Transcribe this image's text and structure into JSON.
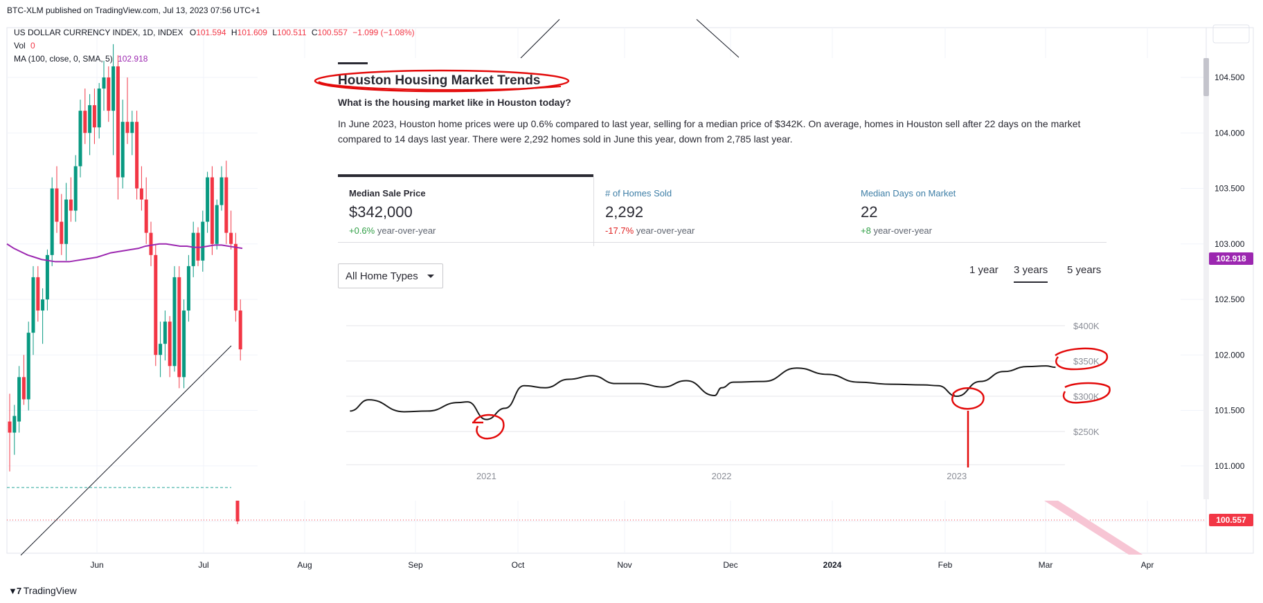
{
  "header": {
    "published_line": "BTC-XLM published on TradingView.com, Jul 13, 2023 07:56 UTC+1"
  },
  "legend": {
    "symbol": "US DOLLAR CURRENCY INDEX, 1D, INDEX",
    "o_label": "O",
    "o_value": "101.594",
    "h_label": "H",
    "h_value": "101.609",
    "l_label": "L",
    "l_value": "100.511",
    "c_label": "C",
    "c_value": "100.557",
    "change": "−1.099 (−1.08%)",
    "vol_label": "Vol",
    "vol_value": "0",
    "ma_label": "MA (100, close, 0, SMA, 5)",
    "ma_value": "102.918"
  },
  "footer": {
    "logo_text": "TradingView"
  },
  "colors": {
    "up": "#089981",
    "down": "#f23645",
    "ma": "#9c27b0",
    "grid": "#f0f3fa"
  },
  "chart_data": [
    {
      "type": "candlestick",
      "title": "US DOLLAR CURRENCY INDEX, 1D, INDEX",
      "y_axis_ticks": [
        "104.500",
        "104.000",
        "103.500",
        "103.000",
        "102.500",
        "102.000",
        "101.500",
        "101.000",
        "100.500"
      ],
      "ylim": [
        100.45,
        104.8
      ],
      "x_axis_ticks": [
        "Jun",
        "Jul",
        "Aug",
        "Sep",
        "Oct",
        "Nov",
        "Dec",
        "2024",
        "Feb",
        "Mar",
        "Apr"
      ],
      "price_labels": {
        "ma": "102.918",
        "last": "100.557"
      },
      "candles": [
        {
          "o": 101.4,
          "h": 101.65,
          "l": 100.95,
          "c": 101.3
        },
        {
          "o": 101.3,
          "h": 101.55,
          "l": 101.1,
          "c": 101.45
        },
        {
          "o": 101.4,
          "h": 101.9,
          "l": 101.3,
          "c": 101.8
        },
        {
          "o": 101.8,
          "h": 102.0,
          "l": 101.55,
          "c": 101.6
        },
        {
          "o": 101.6,
          "h": 102.3,
          "l": 101.5,
          "c": 102.2
        },
        {
          "o": 102.2,
          "h": 102.8,
          "l": 102.0,
          "c": 102.7
        },
        {
          "o": 102.7,
          "h": 102.8,
          "l": 102.3,
          "c": 102.4
        },
        {
          "o": 102.4,
          "h": 102.6,
          "l": 102.1,
          "c": 102.5
        },
        {
          "o": 102.5,
          "h": 102.95,
          "l": 102.4,
          "c": 102.9
        },
        {
          "o": 102.9,
          "h": 103.6,
          "l": 102.8,
          "c": 103.5
        },
        {
          "o": 103.5,
          "h": 103.7,
          "l": 103.1,
          "c": 103.2
        },
        {
          "o": 103.2,
          "h": 103.45,
          "l": 102.9,
          "c": 103.0
        },
        {
          "o": 103.0,
          "h": 103.55,
          "l": 102.85,
          "c": 103.4
        },
        {
          "o": 103.4,
          "h": 103.6,
          "l": 103.2,
          "c": 103.3
        },
        {
          "o": 103.3,
          "h": 103.8,
          "l": 103.2,
          "c": 103.7
        },
        {
          "o": 103.7,
          "h": 104.3,
          "l": 103.6,
          "c": 104.2
        },
        {
          "o": 104.2,
          "h": 104.4,
          "l": 103.9,
          "c": 104.0
        },
        {
          "o": 104.0,
          "h": 104.35,
          "l": 103.8,
          "c": 104.25
        },
        {
          "o": 104.25,
          "h": 104.4,
          "l": 103.9,
          "c": 104.05
        },
        {
          "o": 104.05,
          "h": 104.45,
          "l": 103.95,
          "c": 104.4
        },
        {
          "o": 104.4,
          "h": 104.65,
          "l": 104.2,
          "c": 104.5
        },
        {
          "o": 104.5,
          "h": 104.6,
          "l": 104.1,
          "c": 104.2
        },
        {
          "o": 104.2,
          "h": 104.8,
          "l": 103.8,
          "c": 104.6
        },
        {
          "o": 104.6,
          "h": 104.7,
          "l": 103.4,
          "c": 103.6
        },
        {
          "o": 103.6,
          "h": 104.3,
          "l": 103.5,
          "c": 104.1
        },
        {
          "o": 104.1,
          "h": 104.5,
          "l": 103.9,
          "c": 104.0
        },
        {
          "o": 104.0,
          "h": 104.2,
          "l": 103.8,
          "c": 104.1
        },
        {
          "o": 104.1,
          "h": 104.2,
          "l": 103.4,
          "c": 103.5
        },
        {
          "o": 103.5,
          "h": 103.7,
          "l": 103.3,
          "c": 103.4
        },
        {
          "o": 103.4,
          "h": 103.6,
          "l": 103.0,
          "c": 103.1
        },
        {
          "o": 103.1,
          "h": 103.2,
          "l": 102.8,
          "c": 102.9
        },
        {
          "o": 102.9,
          "h": 103.0,
          "l": 101.9,
          "c": 102.0
        },
        {
          "o": 102.0,
          "h": 102.3,
          "l": 101.8,
          "c": 102.1
        },
        {
          "o": 102.1,
          "h": 102.4,
          "l": 101.95,
          "c": 102.3
        },
        {
          "o": 102.3,
          "h": 102.35,
          "l": 101.8,
          "c": 101.9
        },
        {
          "o": 101.9,
          "h": 102.8,
          "l": 101.85,
          "c": 102.7
        },
        {
          "o": 102.7,
          "h": 102.8,
          "l": 101.7,
          "c": 101.8
        },
        {
          "o": 101.8,
          "h": 102.5,
          "l": 101.7,
          "c": 102.4
        },
        {
          "o": 102.4,
          "h": 102.9,
          "l": 102.3,
          "c": 102.8
        },
        {
          "o": 102.8,
          "h": 103.2,
          "l": 102.7,
          "c": 103.1
        },
        {
          "o": 103.1,
          "h": 103.15,
          "l": 102.8,
          "c": 102.85
        },
        {
          "o": 102.85,
          "h": 103.3,
          "l": 102.75,
          "c": 103.2
        },
        {
          "o": 103.2,
          "h": 103.65,
          "l": 103.1,
          "c": 103.6
        },
        {
          "o": 103.6,
          "h": 103.7,
          "l": 102.9,
          "c": 103.0
        },
        {
          "o": 103.0,
          "h": 103.4,
          "l": 102.95,
          "c": 103.35
        },
        {
          "o": 103.35,
          "h": 103.7,
          "l": 103.3,
          "c": 103.6
        },
        {
          "o": 103.6,
          "h": 103.75,
          "l": 103.0,
          "c": 103.1
        },
        {
          "o": 103.1,
          "h": 103.3,
          "l": 102.95,
          "c": 103.0
        },
        {
          "o": 103.0,
          "h": 103.1,
          "l": 102.3,
          "c": 102.4
        },
        {
          "o": 102.4,
          "h": 102.5,
          "l": 101.95,
          "c": 102.05
        }
      ],
      "partial_candle": {
        "o": 101.6,
        "h": 101.65,
        "l": 100.5,
        "c": 100.56
      },
      "ma_series": [
        103.0,
        102.96,
        102.93,
        102.9,
        102.88,
        102.86,
        102.85,
        102.84,
        102.84,
        102.84,
        102.85,
        102.86,
        102.87,
        102.88,
        102.9,
        102.92,
        102.93,
        102.94,
        102.95,
        102.96,
        102.98,
        102.99,
        103.0,
        103.0,
        102.99,
        102.98,
        102.98,
        102.97,
        102.97,
        102.98,
        102.99,
        102.99,
        102.98,
        102.97,
        102.96
      ]
    },
    {
      "type": "line",
      "title": "Houston Housing Market Trends",
      "y_axis_ticks": [
        "$400K",
        "$350K",
        "$300K",
        "$250K"
      ],
      "ylim": [
        200,
        400
      ],
      "x_axis_ticks": [
        "2021",
        "2022",
        "2023"
      ],
      "xlim": [
        2020.41,
        2023.46
      ],
      "series": [
        {
          "x": [
            2020.42,
            2020.5,
            2020.65,
            2020.75,
            2020.88,
            2020.92,
            2021.0,
            2021.08,
            2021.16,
            2021.25,
            2021.35,
            2021.45,
            2021.55,
            2021.65,
            2021.75,
            2021.85,
            2021.97,
            2022.0,
            2022.05,
            2022.18,
            2022.32,
            2022.45,
            2022.58,
            2022.72,
            2022.86,
            2022.92,
            2023.0,
            2023.1,
            2023.2,
            2023.3,
            2023.38,
            2023.42
          ],
          "y": [
            279,
            295,
            278,
            279,
            291,
            292,
            267,
            283,
            315,
            312,
            324,
            329,
            318,
            318,
            313,
            322,
            301,
            312,
            320,
            321,
            340,
            331,
            320,
            317,
            316,
            315,
            300,
            321,
            335,
            342,
            343,
            341
          ]
        }
      ]
    }
  ],
  "panel": {
    "title": "Houston Housing Market Trends",
    "subtitle": "What is the housing market like in Houston today?",
    "description": "In June 2023, Houston home prices were up 0.6% compared to last year, selling for a median price of $342K. On average, homes in Houston sell after 22 days on the market compared to 14 days last year. There were 2,292 homes sold in June this year, down from 2,785 last year.",
    "tabs": [
      {
        "label": "Median Sale Price",
        "value": "$342,000",
        "change": "+0.6%",
        "change_suffix": "year-over-year"
      },
      {
        "label": "# of Homes Sold",
        "value": "2,292",
        "change": "-17.7%",
        "change_suffix": "year-over-year"
      },
      {
        "label": "Median Days on Market",
        "value": "22",
        "change": "+8",
        "change_suffix": "year-over-year"
      }
    ],
    "home_type_select": "All Home Types",
    "ranges": [
      "1 year",
      "3 years",
      "5 years"
    ],
    "selected_range": "3 years"
  }
}
